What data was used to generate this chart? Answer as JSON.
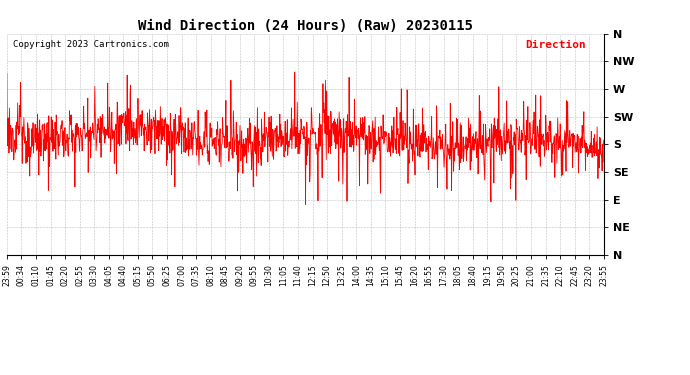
{
  "title": "Wind Direction (24 Hours) (Raw) 20230115",
  "copyright": "Copyright 2023 Cartronics.com",
  "legend_label": "Direction",
  "legend_color": "#ff0000",
  "background_color": "#ffffff",
  "plot_bg_color": "#ffffff",
  "grid_color": "#b0b0b0",
  "line_color": "#ff0000",
  "ytick_labels": [
    "N",
    "NW",
    "W",
    "SW",
    "S",
    "SE",
    "E",
    "NE",
    "N"
  ],
  "ytick_values": [
    0,
    45,
    90,
    135,
    180,
    225,
    270,
    315,
    360
  ],
  "ylim_min": 0,
  "ylim_max": 360,
  "xtick_labels": [
    "23:59",
    "00:34",
    "01:10",
    "01:45",
    "02:20",
    "02:55",
    "03:30",
    "04:05",
    "04:40",
    "05:15",
    "05:50",
    "06:25",
    "07:00",
    "07:35",
    "08:10",
    "08:45",
    "09:20",
    "09:55",
    "10:30",
    "11:05",
    "11:40",
    "12:15",
    "12:50",
    "13:25",
    "14:00",
    "14:35",
    "15:10",
    "15:45",
    "16:20",
    "16:55",
    "17:30",
    "18:05",
    "18:40",
    "19:15",
    "19:50",
    "20:25",
    "21:00",
    "21:35",
    "22:10",
    "22:45",
    "23:20",
    "23:55"
  ]
}
